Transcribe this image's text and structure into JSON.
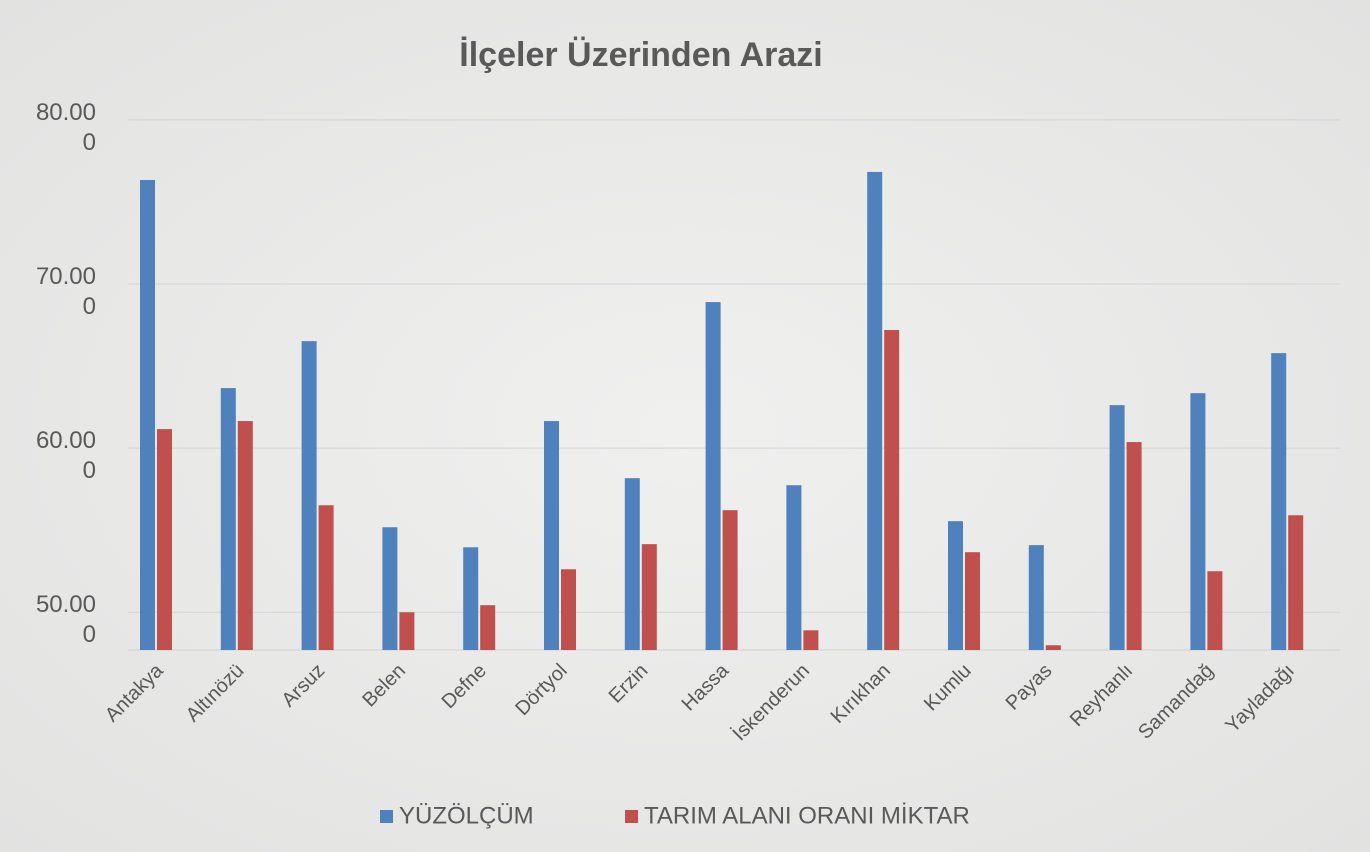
{
  "chart_data": {
    "type": "bar",
    "title": "İlçeler Üzerinden Arazi",
    "categories": [
      "Antakya",
      "Altınözü",
      "Arsuz",
      "Belen",
      "Defne",
      "Dörtyol",
      "Erzin",
      "Hassa",
      "İskenderun",
      "Kırıkhan",
      "Kumlu",
      "Payas",
      "Reyhanlı",
      "Samandağ",
      "Yayladağı"
    ],
    "series": [
      {
        "name": "YÜZÖLÇÜM",
        "color": "#4f81bd",
        "values": [
          76340,
          63660,
          66520,
          55180,
          53960,
          61650,
          58170,
          68900,
          57740,
          76830,
          55550,
          54090,
          62620,
          63350,
          65790
        ]
      },
      {
        "name": "TARIM ALANI ORANI MİKTAR",
        "color": "#c0504d",
        "values": [
          61160,
          61650,
          56520,
          50000,
          50430,
          52620,
          54150,
          56220,
          48900,
          67200,
          53660,
          47990,
          60370,
          52500,
          55910
        ]
      }
    ],
    "ylim": [
      47700,
      80300
    ],
    "yticks": [
      {
        "value": 50000,
        "label": "50.000"
      },
      {
        "value": 60000,
        "label": "60.000"
      },
      {
        "value": 70000,
        "label": "70.000"
      },
      {
        "value": 80000,
        "label": "80.000"
      }
    ],
    "grid": true,
    "legend": "bottom"
  }
}
